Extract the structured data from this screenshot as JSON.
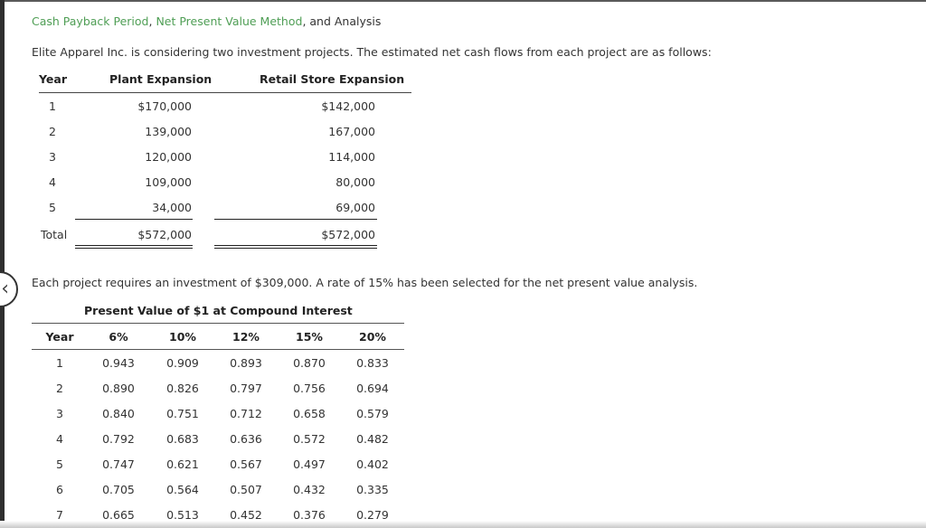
{
  "title": {
    "part1": "Cash Payback Period",
    "sep1": ", ",
    "part2": "Net Present Value Method",
    "part3": ", and Analysis"
  },
  "intro": "Elite Apparel Inc. is considering two investment projects. The estimated net cash flows from each project are as follows:",
  "cash_flow_table": {
    "headers": [
      "Year",
      "Plant Expansion",
      "Retail Store Expansion"
    ],
    "rows": [
      {
        "year": "1",
        "plant": "$170,000",
        "retail": "$142,000"
      },
      {
        "year": "2",
        "plant": "139,000",
        "retail": "167,000"
      },
      {
        "year": "3",
        "plant": "120,000",
        "retail": "114,000"
      },
      {
        "year": "4",
        "plant": "109,000",
        "retail": "80,000"
      },
      {
        "year": "5",
        "plant": "34,000",
        "retail": "69,000"
      }
    ],
    "total": {
      "label": "Total",
      "plant": "$572,000",
      "retail": "$572,000"
    }
  },
  "investment_text": "Each project requires an investment of $309,000. A rate of 15% has been selected for the net present value analysis.",
  "pv_table": {
    "caption": "Present Value of $1 at Compound Interest",
    "headers": [
      "Year",
      "6%",
      "10%",
      "12%",
      "15%",
      "20%"
    ],
    "rows": [
      [
        "1",
        "0.943",
        "0.909",
        "0.893",
        "0.870",
        "0.833"
      ],
      [
        "2",
        "0.890",
        "0.826",
        "0.797",
        "0.756",
        "0.694"
      ],
      [
        "3",
        "0.840",
        "0.751",
        "0.712",
        "0.658",
        "0.579"
      ],
      [
        "4",
        "0.792",
        "0.683",
        "0.636",
        "0.572",
        "0.482"
      ],
      [
        "5",
        "0.747",
        "0.621",
        "0.567",
        "0.497",
        "0.402"
      ],
      [
        "6",
        "0.705",
        "0.564",
        "0.507",
        "0.432",
        "0.335"
      ],
      [
        "7",
        "0.665",
        "0.513",
        "0.452",
        "0.376",
        "0.279"
      ]
    ]
  },
  "nav": {
    "back_icon": "‹"
  },
  "colors": {
    "link_green": "#4f9e55",
    "text": "#333333"
  }
}
